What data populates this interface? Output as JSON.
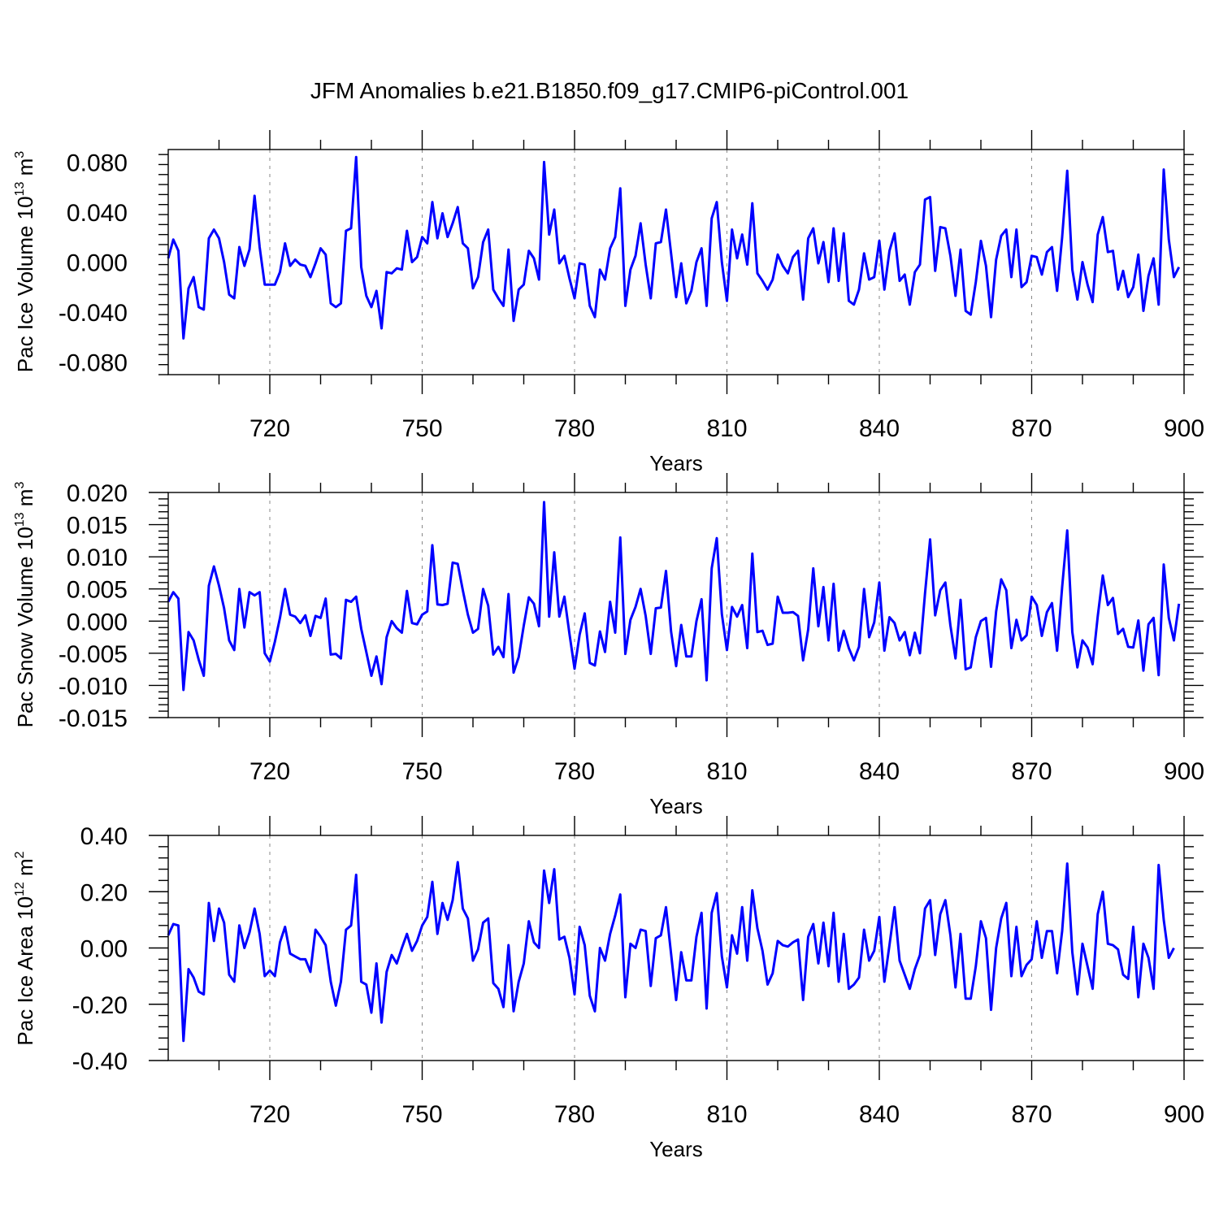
{
  "title": "JFM Anomalies b.e21.B1850.f09_g17.CMIP6-piControl.001",
  "colors": {
    "line": "#0000ff",
    "axis": "#000000",
    "grid": "#888888",
    "background": "#ffffff"
  },
  "chart_data": [
    {
      "type": "line",
      "ylabel": {
        "text": "Pac Ice Volume 10",
        "exp": "13",
        "unit": " m",
        "unit_exp": "3"
      },
      "xlabel": "Years",
      "xlim": [
        700,
        900
      ],
      "ylim": [
        -0.09,
        0.09
      ],
      "yticks": [
        -0.08,
        -0.04,
        0.0,
        0.04,
        0.08
      ],
      "ytick_labels": [
        "-0.080",
        "-0.040",
        "0.000",
        "0.040",
        "0.080"
      ],
      "xticks": [
        720,
        750,
        780,
        810,
        840,
        870,
        900
      ],
      "xtick_labels": [
        "720",
        "750",
        "780",
        "810",
        "840",
        "870",
        "900"
      ],
      "gridlines_x": [
        720,
        750,
        780,
        810,
        840,
        870
      ],
      "x_start": 700,
      "x_step": 1,
      "values": [
        0.003,
        0.018,
        0.009,
        -0.061,
        -0.021,
        -0.012,
        -0.036,
        -0.038,
        0.019,
        0.026,
        0.019,
        0.0,
        -0.026,
        -0.029,
        0.012,
        -0.003,
        0.01,
        0.053,
        0.012,
        -0.018,
        -0.018,
        -0.018,
        -0.008,
        0.015,
        -0.003,
        0.002,
        -0.002,
        -0.003,
        -0.012,
        -0.001,
        0.011,
        0.006,
        -0.033,
        -0.036,
        -0.033,
        0.025,
        0.027,
        0.084,
        -0.004,
        -0.027,
        -0.036,
        -0.023,
        -0.053,
        -0.008,
        -0.009,
        -0.005,
        -0.006,
        0.025,
        0.0,
        0.004,
        0.02,
        0.015,
        0.048,
        0.019,
        0.039,
        0.02,
        0.031,
        0.044,
        0.015,
        0.011,
        -0.021,
        -0.012,
        0.016,
        0.026,
        -0.022,
        -0.029,
        -0.035,
        0.01,
        -0.047,
        -0.022,
        -0.018,
        0.009,
        0.003,
        -0.014,
        0.08,
        0.022,
        0.042,
        -0.001,
        0.005,
        -0.013,
        -0.029,
        -0.001,
        -0.002,
        -0.035,
        -0.044,
        -0.006,
        -0.014,
        0.011,
        0.02,
        0.059,
        -0.035,
        -0.006,
        0.005,
        0.031,
        -0.002,
        -0.029,
        0.015,
        0.016,
        0.042,
        0.007,
        -0.028,
        -0.001,
        -0.033,
        -0.023,
        0.0,
        0.011,
        -0.035,
        0.035,
        0.048,
        0.0,
        -0.031,
        0.026,
        0.003,
        0.022,
        -0.002,
        0.047,
        -0.009,
        -0.015,
        -0.022,
        -0.014,
        0.006,
        -0.003,
        -0.009,
        0.004,
        0.009,
        -0.03,
        0.019,
        0.027,
        -0.001,
        0.016,
        -0.016,
        0.027,
        -0.015,
        0.023,
        -0.031,
        -0.034,
        -0.022,
        0.007,
        -0.014,
        -0.012,
        0.017,
        -0.022,
        0.009,
        0.023,
        -0.015,
        -0.01,
        -0.034,
        -0.008,
        -0.002,
        0.05,
        0.052,
        -0.007,
        0.028,
        0.027,
        0.005,
        -0.027,
        0.01,
        -0.039,
        -0.042,
        -0.016,
        0.017,
        -0.003,
        -0.044,
        0.002,
        0.021,
        0.026,
        -0.012,
        0.026,
        -0.02,
        -0.016,
        0.005,
        0.004,
        -0.01,
        0.008,
        0.012,
        -0.023,
        0.02,
        0.073,
        -0.006,
        -0.03,
        0.0,
        -0.018,
        -0.032,
        0.022,
        0.036,
        0.008,
        0.009,
        -0.022,
        -0.007,
        -0.028,
        -0.02,
        0.006,
        -0.039,
        -0.011,
        0.003,
        -0.034,
        0.074,
        0.018,
        -0.012,
        -0.004
      ]
    },
    {
      "type": "line",
      "ylabel": {
        "text": "Pac Snow Volume 10",
        "exp": "13",
        "unit": " m",
        "unit_exp": "3"
      },
      "xlabel": "Years",
      "xlim": [
        700,
        900
      ],
      "ylim": [
        -0.015,
        0.02
      ],
      "yticks": [
        -0.015,
        -0.01,
        -0.005,
        0.0,
        0.005,
        0.01,
        0.015,
        0.02
      ],
      "ytick_labels": [
        "-0.015",
        "-0.010",
        "-0.005",
        "0.000",
        "0.005",
        "0.010",
        "0.015",
        "0.020"
      ],
      "xticks": [
        720,
        750,
        780,
        810,
        840,
        870,
        900
      ],
      "xtick_labels": [
        "720",
        "750",
        "780",
        "810",
        "840",
        "870",
        "900"
      ],
      "gridlines_x": [
        720,
        750,
        780,
        810,
        840,
        870
      ],
      "x_start": 700,
      "x_step": 1,
      "values": [
        0.003,
        0.0045,
        0.0035,
        -0.0107,
        -0.0017,
        -0.003,
        -0.006,
        -0.0085,
        0.0055,
        0.0085,
        0.0055,
        0.002,
        -0.003,
        -0.0045,
        0.005,
        -0.001,
        0.0045,
        0.004,
        0.0045,
        -0.005,
        -0.0063,
        -0.0032,
        0.0005,
        0.005,
        0.001,
        0.0007,
        -0.0003,
        0.0009,
        -0.0023,
        0.0008,
        0.0005,
        0.0035,
        -0.0052,
        -0.0051,
        -0.0058,
        0.0033,
        0.003,
        0.0038,
        -0.0012,
        -0.0048,
        -0.0085,
        -0.0055,
        -0.0098,
        -0.0025,
        0.0,
        -0.0011,
        -0.0018,
        0.0047,
        -0.0003,
        -0.0005,
        0.001,
        0.0015,
        0.0118,
        0.0026,
        0.0025,
        0.0027,
        0.0091,
        0.0089,
        0.0048,
        0.001,
        -0.0018,
        -0.0012,
        0.005,
        0.0024,
        -0.0052,
        -0.004,
        -0.0056,
        0.0042,
        -0.008,
        -0.0056,
        -0.0007,
        0.0037,
        0.0027,
        -0.0008,
        0.0185,
        0.0007,
        0.0107,
        0.0007,
        0.0038,
        -0.002,
        -0.0074,
        -0.0021,
        0.0012,
        -0.0065,
        -0.0069,
        -0.0016,
        -0.0048,
        0.003,
        -0.0018,
        0.013,
        -0.0051,
        0.0002,
        0.0022,
        0.005,
        0.0008,
        -0.0051,
        0.002,
        0.0021,
        0.0078,
        -0.0016,
        -0.007,
        -0.0006,
        -0.0055,
        -0.0055,
        0.0,
        0.0034,
        -0.0092,
        0.0082,
        0.0129,
        0.0011,
        -0.0045,
        0.0022,
        0.0007,
        0.0025,
        -0.0042,
        0.0105,
        -0.0017,
        -0.0015,
        -0.0037,
        -0.0035,
        0.0038,
        0.0013,
        0.0013,
        0.0014,
        0.0008,
        -0.0061,
        -0.0013,
        0.0082,
        -0.0008,
        0.0053,
        -0.003,
        0.0058,
        -0.0046,
        -0.0015,
        -0.0042,
        -0.0061,
        -0.004,
        0.005,
        -0.0025,
        -0.0002,
        0.006,
        -0.0046,
        0.0006,
        -0.0003,
        -0.003,
        -0.0017,
        -0.0053,
        -0.0018,
        -0.005,
        0.0043,
        0.0127,
        0.0009,
        0.0048,
        0.006,
        -0.0007,
        -0.0058,
        0.0033,
        -0.0075,
        -0.0072,
        -0.0025,
        0.0,
        0.0005,
        -0.0071,
        0.0015,
        0.0065,
        0.0048,
        -0.0042,
        0.0002,
        -0.003,
        -0.0022,
        0.0038,
        0.0025,
        -0.0023,
        0.0014,
        0.0028,
        -0.0046,
        0.0053,
        0.0141,
        -0.0017,
        -0.0072,
        -0.003,
        -0.0041,
        -0.0067,
        0.0007,
        0.0071,
        0.0025,
        0.0036,
        -0.002,
        -0.0012,
        -0.004,
        -0.0041,
        0.0001,
        -0.0077,
        -0.0005,
        0.0005,
        -0.0084,
        0.0088,
        0.0005,
        -0.003,
        0.0027
      ]
    },
    {
      "type": "line",
      "ylabel": {
        "text": "Pac Ice Area 10",
        "exp": "12",
        "unit": " m",
        "unit_exp": "2"
      },
      "xlabel": "Years",
      "xlim": [
        700,
        900
      ],
      "ylim": [
        -0.4,
        0.4
      ],
      "yticks": [
        -0.4,
        -0.2,
        0.0,
        0.2,
        0.4
      ],
      "ytick_labels": [
        "-0.40",
        "-0.20",
        "0.00",
        "0.20",
        "0.40"
      ],
      "xticks": [
        720,
        750,
        780,
        810,
        840,
        870,
        900
      ],
      "xtick_labels": [
        "720",
        "750",
        "780",
        "810",
        "840",
        "870",
        "900"
      ],
      "gridlines_x": [
        720,
        750,
        780,
        810,
        840,
        870
      ],
      "x_start": 700,
      "x_step": 1,
      "values": [
        0.045,
        0.085,
        0.08,
        -0.33,
        -0.075,
        -0.105,
        -0.155,
        -0.165,
        0.16,
        0.025,
        0.14,
        0.09,
        -0.095,
        -0.12,
        0.08,
        0.0,
        0.055,
        0.14,
        0.05,
        -0.1,
        -0.08,
        -0.1,
        0.02,
        0.075,
        -0.02,
        -0.03,
        -0.04,
        -0.04,
        -0.085,
        0.065,
        0.04,
        0.01,
        -0.12,
        -0.205,
        -0.12,
        0.065,
        0.08,
        0.26,
        -0.12,
        -0.13,
        -0.23,
        -0.055,
        -0.265,
        -0.085,
        -0.025,
        -0.055,
        0.0,
        0.05,
        -0.01,
        0.025,
        0.08,
        0.11,
        0.235,
        0.05,
        0.16,
        0.1,
        0.17,
        0.305,
        0.14,
        0.105,
        -0.045,
        -0.005,
        0.09,
        0.105,
        -0.125,
        -0.145,
        -0.21,
        0.01,
        -0.225,
        -0.12,
        -0.055,
        0.095,
        0.02,
        0.0,
        0.275,
        0.16,
        0.28,
        0.03,
        0.04,
        -0.035,
        -0.165,
        0.075,
        0.01,
        -0.17,
        -0.225,
        0.0,
        -0.045,
        0.05,
        0.115,
        0.19,
        -0.175,
        0.015,
        0.0,
        0.065,
        0.06,
        -0.135,
        0.035,
        0.045,
        0.145,
        -0.02,
        -0.185,
        -0.015,
        -0.115,
        -0.115,
        0.04,
        0.125,
        -0.215,
        0.125,
        0.195,
        -0.03,
        -0.14,
        0.045,
        -0.02,
        0.145,
        -0.045,
        0.205,
        0.07,
        -0.01,
        -0.13,
        -0.09,
        0.025,
        0.01,
        0.005,
        0.02,
        0.03,
        -0.185,
        0.04,
        0.085,
        -0.055,
        0.09,
        -0.065,
        0.125,
        -0.12,
        0.05,
        -0.145,
        -0.13,
        -0.105,
        0.065,
        -0.045,
        -0.01,
        0.11,
        -0.12,
        0.01,
        0.145,
        -0.045,
        -0.095,
        -0.145,
        -0.075,
        -0.025,
        0.14,
        0.17,
        -0.025,
        0.12,
        0.17,
        0.045,
        -0.14,
        0.05,
        -0.18,
        -0.18,
        -0.065,
        0.095,
        0.035,
        -0.22,
        0.0,
        0.105,
        0.16,
        -0.1,
        0.075,
        -0.1,
        -0.06,
        -0.04,
        0.095,
        -0.035,
        0.06,
        0.06,
        -0.09,
        0.06,
        0.3,
        -0.015,
        -0.165,
        0.015,
        -0.065,
        -0.145,
        0.12,
        0.2,
        0.015,
        0.01,
        -0.005,
        -0.095,
        -0.11,
        0.075,
        -0.175,
        0.015,
        -0.035,
        -0.145,
        0.295,
        0.1,
        -0.035,
        0.0
      ]
    }
  ]
}
